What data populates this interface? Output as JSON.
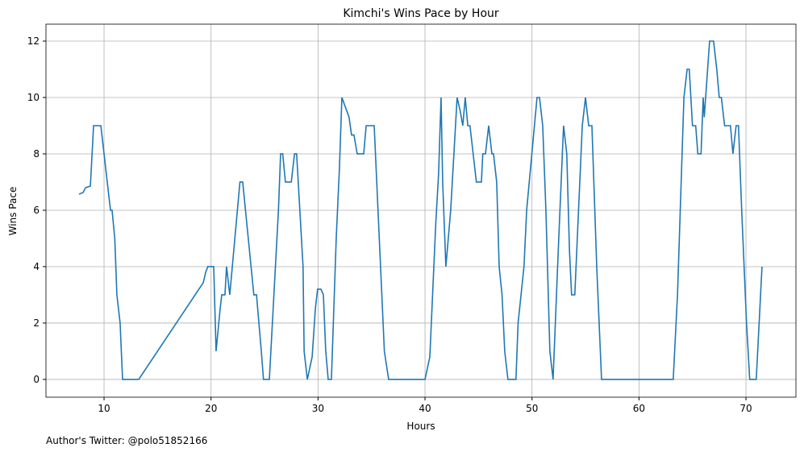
{
  "chart_data": {
    "type": "line",
    "title": "Kimchi's Wins Pace by Hour",
    "x_label": "Hours",
    "y_label": "Wins Pace",
    "annotation": "Author's Twitter: @polo51852166",
    "x": [
      7.66,
      8.04,
      8.27,
      8.72,
      9.02,
      9.7,
      10.6,
      10.75,
      11.0,
      11.2,
      11.5,
      11.73,
      13.24,
      19.27,
      19.5,
      19.7,
      20.25,
      20.47,
      20.85,
      21.0,
      21.3,
      21.45,
      21.75,
      22.7,
      22.96,
      24.0,
      24.25,
      24.7,
      24.9,
      25.45,
      26.3,
      26.5,
      26.7,
      26.95,
      27.5,
      27.8,
      28.0,
      28.6,
      28.7,
      29.0,
      29.45,
      29.75,
      29.96,
      30.27,
      30.5,
      30.72,
      30.95,
      31.25,
      31.7,
      32.0,
      32.23,
      32.9,
      33.13,
      33.36,
      33.66,
      34.27,
      34.5,
      35.25,
      36.2,
      36.6,
      40.0,
      40.45,
      41.0,
      41.27,
      41.5,
      41.65,
      41.95,
      42.4,
      43.0,
      43.3,
      43.53,
      43.76,
      44.0,
      44.2,
      44.8,
      45.27,
      45.4,
      45.65,
      45.95,
      46.25,
      46.4,
      46.7,
      46.93,
      47.2,
      47.45,
      47.75,
      48.5,
      48.7,
      49.25,
      49.5,
      50.47,
      50.7,
      51.0,
      51.3,
      51.67,
      51.97,
      52.5,
      52.95,
      53.25,
      53.5,
      53.7,
      54.0,
      54.7,
      55.0,
      55.3,
      55.6,
      56.05,
      56.5,
      63.2,
      63.6,
      64.2,
      64.5,
      64.7,
      65.0,
      65.3,
      65.5,
      65.8,
      66.0,
      66.1,
      66.6,
      66.97,
      67.27,
      67.5,
      67.7,
      68.0,
      68.55,
      68.78,
      69.08,
      69.3,
      69.6,
      70.05,
      70.35,
      70.96,
      71.5
    ],
    "series": [
      {
        "name": "Wins Pace",
        "color": "#1f77b4",
        "values": [
          6.57,
          6.63,
          6.8,
          6.86,
          9,
          9,
          6,
          6,
          5,
          3,
          2,
          0,
          0,
          3.43,
          3.8,
          4,
          4,
          1,
          2.5,
          3,
          3,
          4,
          3,
          7,
          7,
          3,
          3,
          1,
          0,
          0,
          6,
          8,
          8,
          7,
          7,
          8,
          8,
          4,
          1,
          0,
          0.8,
          2.5,
          3.2,
          3.2,
          3,
          1,
          0,
          0,
          5,
          7.5,
          10,
          9.3,
          8.67,
          8.67,
          8,
          8,
          9,
          9,
          1,
          0,
          0,
          0.8,
          5.5,
          7.3,
          10,
          7,
          4,
          6,
          10,
          9.5,
          9,
          10,
          9,
          9,
          7,
          7,
          8,
          8,
          9,
          8,
          8,
          7,
          4,
          3,
          1,
          0,
          0,
          2,
          4,
          6,
          10,
          10,
          9,
          6,
          1,
          0,
          5,
          9,
          8,
          4.6,
          3,
          3,
          9,
          10,
          9,
          9,
          4,
          0,
          0,
          3,
          10,
          11,
          11,
          9,
          9,
          8,
          8,
          10,
          9.3,
          12,
          12,
          11,
          10,
          10,
          9,
          9,
          8,
          9,
          9,
          6,
          2,
          0,
          0,
          4
        ]
      }
    ],
    "xlim": [
      4.57,
      74.67
    ],
    "ylim": [
      -0.63,
      12.6
    ],
    "xticks": [
      10,
      20,
      30,
      40,
      50,
      60,
      70
    ],
    "yticks": [
      0,
      2,
      4,
      6,
      8,
      10,
      12
    ],
    "grid": true
  }
}
